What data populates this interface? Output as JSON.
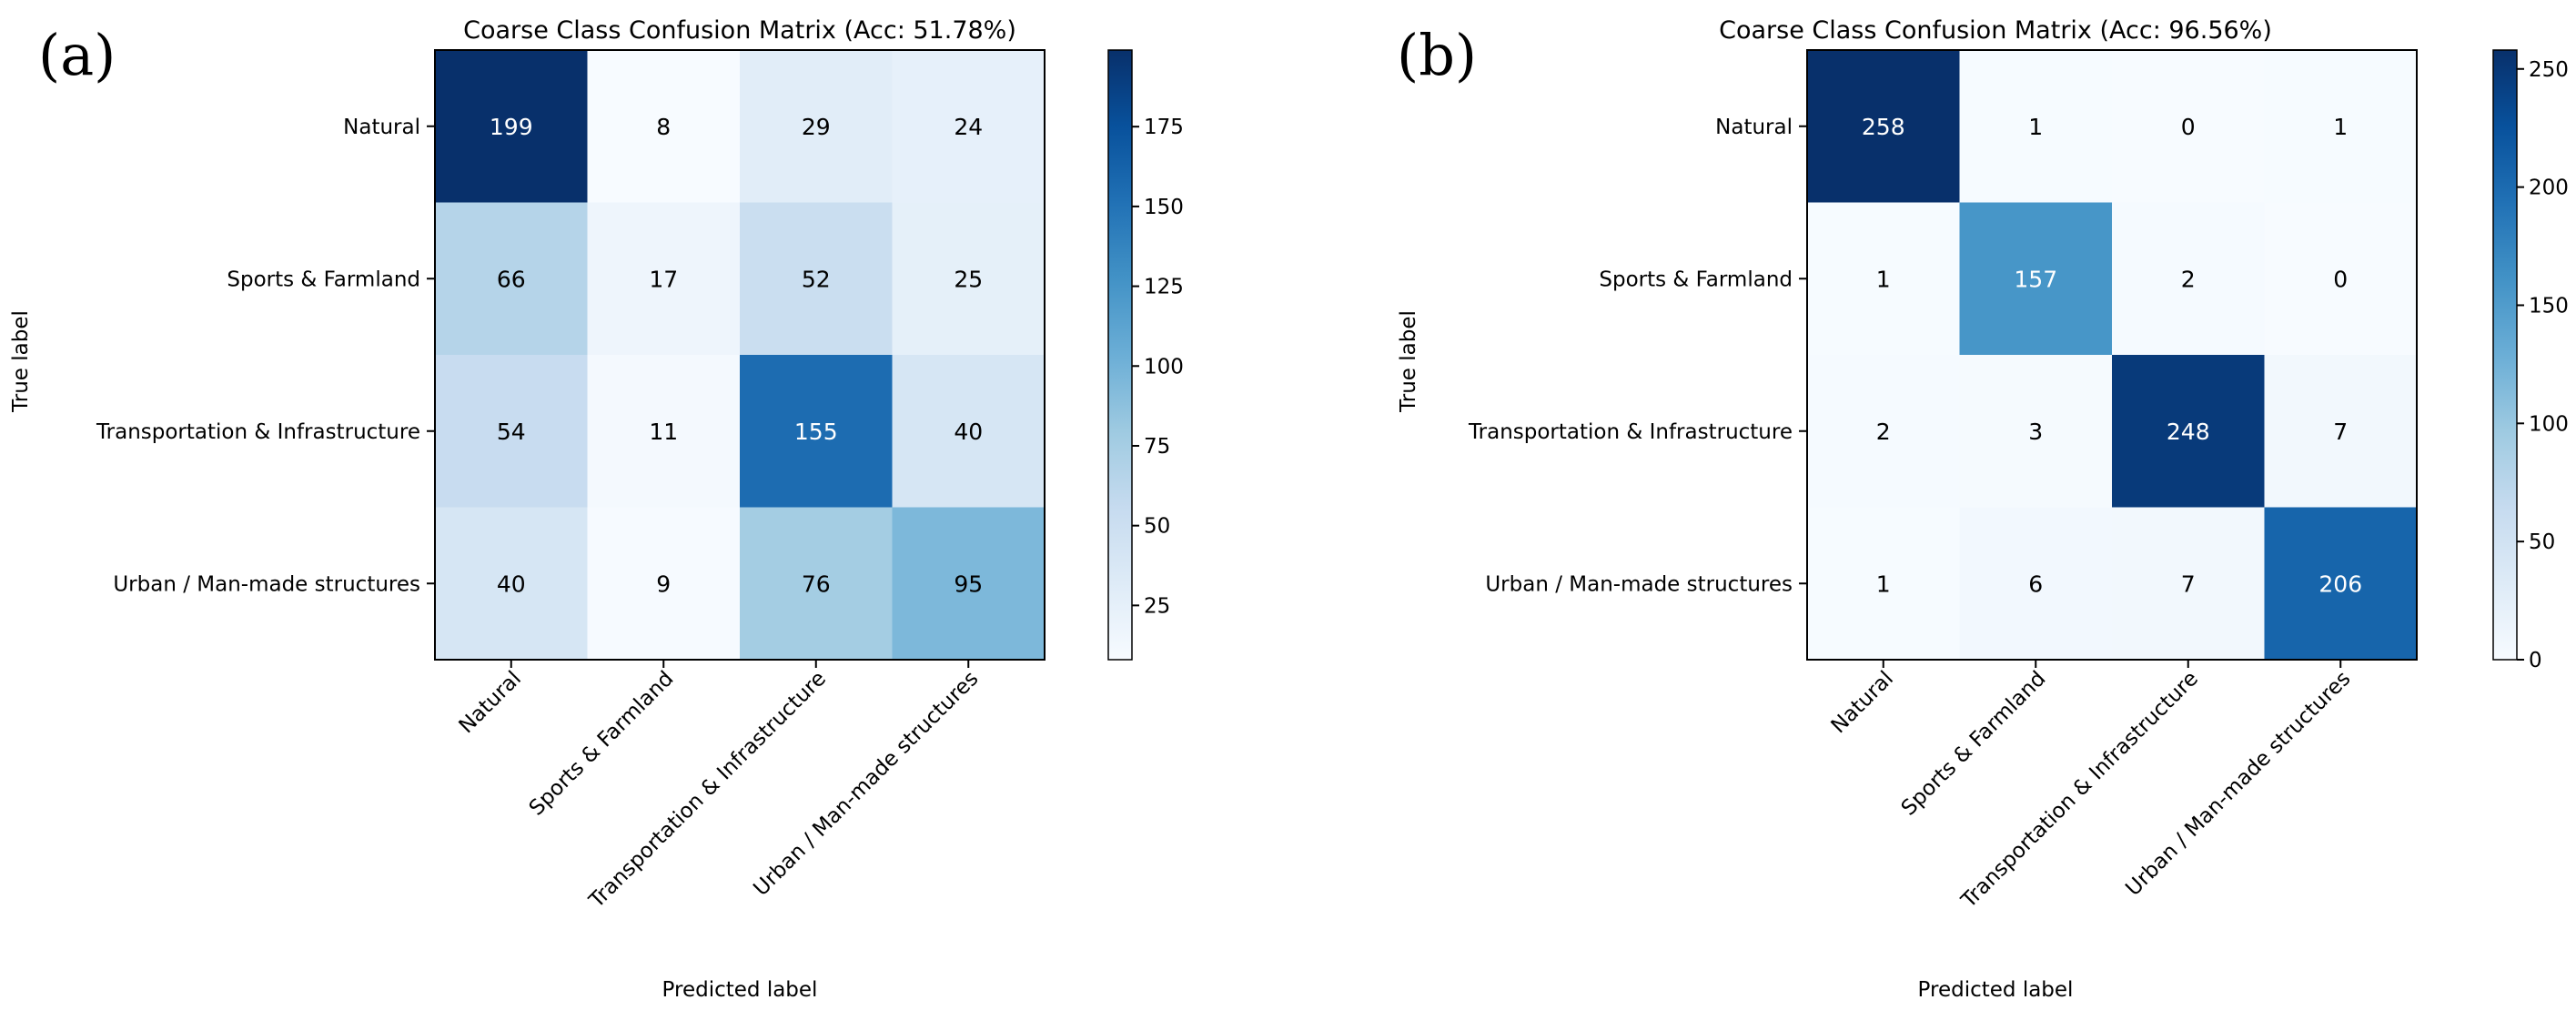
{
  "colors": {
    "cmap_low": "#f7fbff",
    "cmap_high": "#08306b",
    "text_dark": "#000000",
    "text_light": "#ffffff",
    "cmap_stops": [
      "#f7fbff",
      "#deebf7",
      "#c6dbef",
      "#9ecae1",
      "#6baed6",
      "#4292c6",
      "#2171b5",
      "#08519c",
      "#08306b"
    ]
  },
  "chart_data": [
    {
      "type": "heatmap",
      "panel_label": "(a)",
      "title": "Coarse Class Confusion Matrix (Acc: 51.78%)",
      "xlabel": "Predicted label",
      "ylabel": "True label",
      "categories": [
        "Natural",
        "Sports & Farmland",
        "Transportation & Infrastructure",
        "Urban / Man-made structures"
      ],
      "values": [
        [
          199,
          8,
          29,
          24
        ],
        [
          66,
          17,
          52,
          25
        ],
        [
          54,
          11,
          155,
          40
        ],
        [
          40,
          9,
          76,
          95
        ]
      ],
      "colorbar": {
        "min": 8,
        "max": 199,
        "ticks": [
          25,
          50,
          75,
          100,
          125,
          150,
          175
        ]
      }
    },
    {
      "type": "heatmap",
      "panel_label": "(b)",
      "title": "Coarse Class Confusion Matrix (Acc: 96.56%)",
      "xlabel": "Predicted label",
      "ylabel": "True label",
      "categories": [
        "Natural",
        "Sports & Farmland",
        "Transportation & Infrastructure",
        "Urban / Man-made structures"
      ],
      "values": [
        [
          258,
          1,
          0,
          1
        ],
        [
          1,
          157,
          2,
          0
        ],
        [
          2,
          3,
          248,
          7
        ],
        [
          1,
          6,
          7,
          206
        ]
      ],
      "colorbar": {
        "min": 0,
        "max": 258,
        "ticks": [
          0,
          50,
          100,
          150,
          200,
          250
        ]
      }
    }
  ]
}
